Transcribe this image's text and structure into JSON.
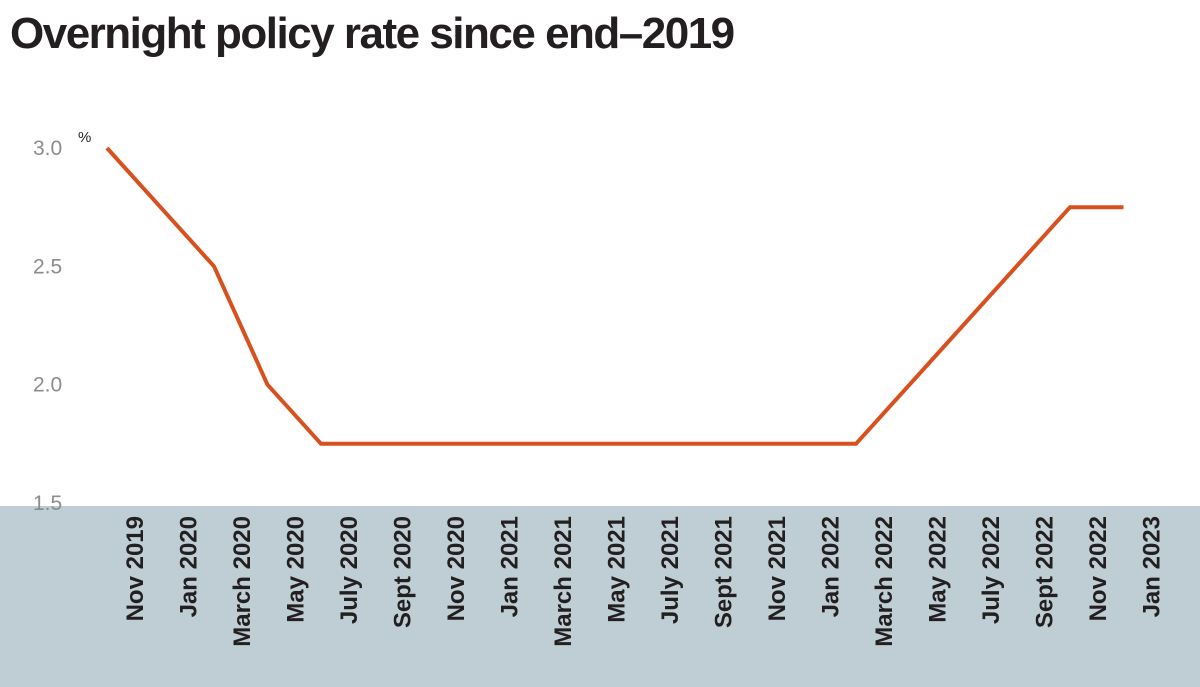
{
  "chart_data": {
    "type": "line",
    "title": "Overnight policy rate since end–2019",
    "xlabel": "",
    "ylabel": "",
    "y_unit": "%",
    "ylim": [
      1.5,
      3.0
    ],
    "yticks": [
      3.0,
      2.5,
      2.0,
      1.5
    ],
    "ytick_labels": [
      "3.0",
      "2.5",
      "2.0",
      "1.5"
    ],
    "categories": [
      "Nov 2019",
      "Jan 2020",
      "March 2020",
      "May 2020",
      "July 2020",
      "Sept 2020",
      "Nov 2020",
      "Jan 2021",
      "March 2021",
      "May 2021",
      "July 2021",
      "Sept 2021",
      "Nov 2021",
      "Jan 2022",
      "March 2022",
      "May 2022",
      "July 2022",
      "Sept 2022",
      "Nov 2022",
      "Jan 2023"
    ],
    "series": [
      {
        "color": "#d9501f",
        "values": [
          3.0,
          2.75,
          2.5,
          2.0,
          1.75,
          1.75,
          1.75,
          1.75,
          1.75,
          1.75,
          1.75,
          1.75,
          1.75,
          1.75,
          1.75,
          2.0,
          2.25,
          2.5,
          2.75,
          2.75
        ]
      }
    ],
    "axis_band_color": "#bfced4",
    "grid": false,
    "legend": "none"
  }
}
